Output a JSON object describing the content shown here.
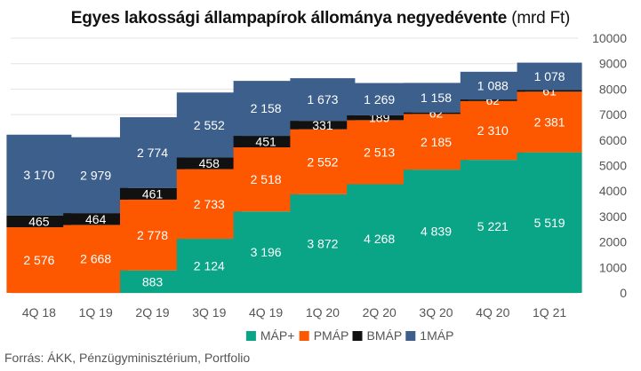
{
  "title": "Egyes lakossági állampapírok állománya negyedévente",
  "unit_label": "(mrd Ft)",
  "source": "Forrás: ÁKK, Pénzügyminisztérium, Portfolio",
  "chart_data": {
    "type": "bar",
    "stacked": true,
    "title": "Egyes lakossági állampapírok állománya negyedévente",
    "xlabel": "",
    "ylabel": "",
    "ylim": [
      0,
      10000
    ],
    "yticks": [
      0,
      1000,
      2000,
      3000,
      4000,
      5000,
      6000,
      7000,
      8000,
      9000,
      10000
    ],
    "ytick_labels": [
      "0",
      "1000",
      "2000",
      "3000",
      "4000",
      "5000",
      "6000",
      "7000",
      "8000",
      "9000",
      "10000"
    ],
    "y_axis_side": "right",
    "grid": true,
    "legend_position": "bottom",
    "categories": [
      "4Q 18",
      "1Q 19",
      "2Q 19",
      "3Q 19",
      "4Q 19",
      "1Q 20",
      "2Q 20",
      "3Q 20",
      "4Q 20",
      "1Q 21"
    ],
    "series": [
      {
        "name": "MÁP+",
        "color": "#0aa487",
        "values": [
          0,
          0,
          883,
          2124,
          3196,
          3872,
          4268,
          4839,
          5221,
          5519
        ],
        "labels": [
          "",
          "",
          "883",
          "2 124",
          "3 196",
          "3 872",
          "4 268",
          "4 839",
          "5 221",
          "5 519"
        ]
      },
      {
        "name": "PMÁP",
        "color": "#fd5800",
        "values": [
          2576,
          2668,
          2778,
          2733,
          2518,
          2552,
          2513,
          2185,
          2310,
          2381
        ],
        "labels": [
          "2 576",
          "2 668",
          "2 778",
          "2 733",
          "2 518",
          "2 552",
          "2 513",
          "2 185",
          "2 310",
          "2 381"
        ]
      },
      {
        "name": "BMÁP",
        "color": "#111111",
        "values": [
          465,
          464,
          461,
          458,
          451,
          331,
          189,
          62,
          62,
          61
        ],
        "labels": [
          "465",
          "464",
          "461",
          "458",
          "451",
          "331",
          "189",
          "62",
          "62",
          "61"
        ]
      },
      {
        "name": "1MÁP",
        "color": "#3c5f8c",
        "values": [
          3170,
          2979,
          2774,
          2552,
          2158,
          1673,
          1269,
          1158,
          1088,
          1078
        ],
        "labels": [
          "3 170",
          "2 979",
          "2 774",
          "2 552",
          "2 158",
          "1 673",
          "1 269",
          "1 158",
          "1 088",
          "1 078"
        ]
      }
    ]
  }
}
